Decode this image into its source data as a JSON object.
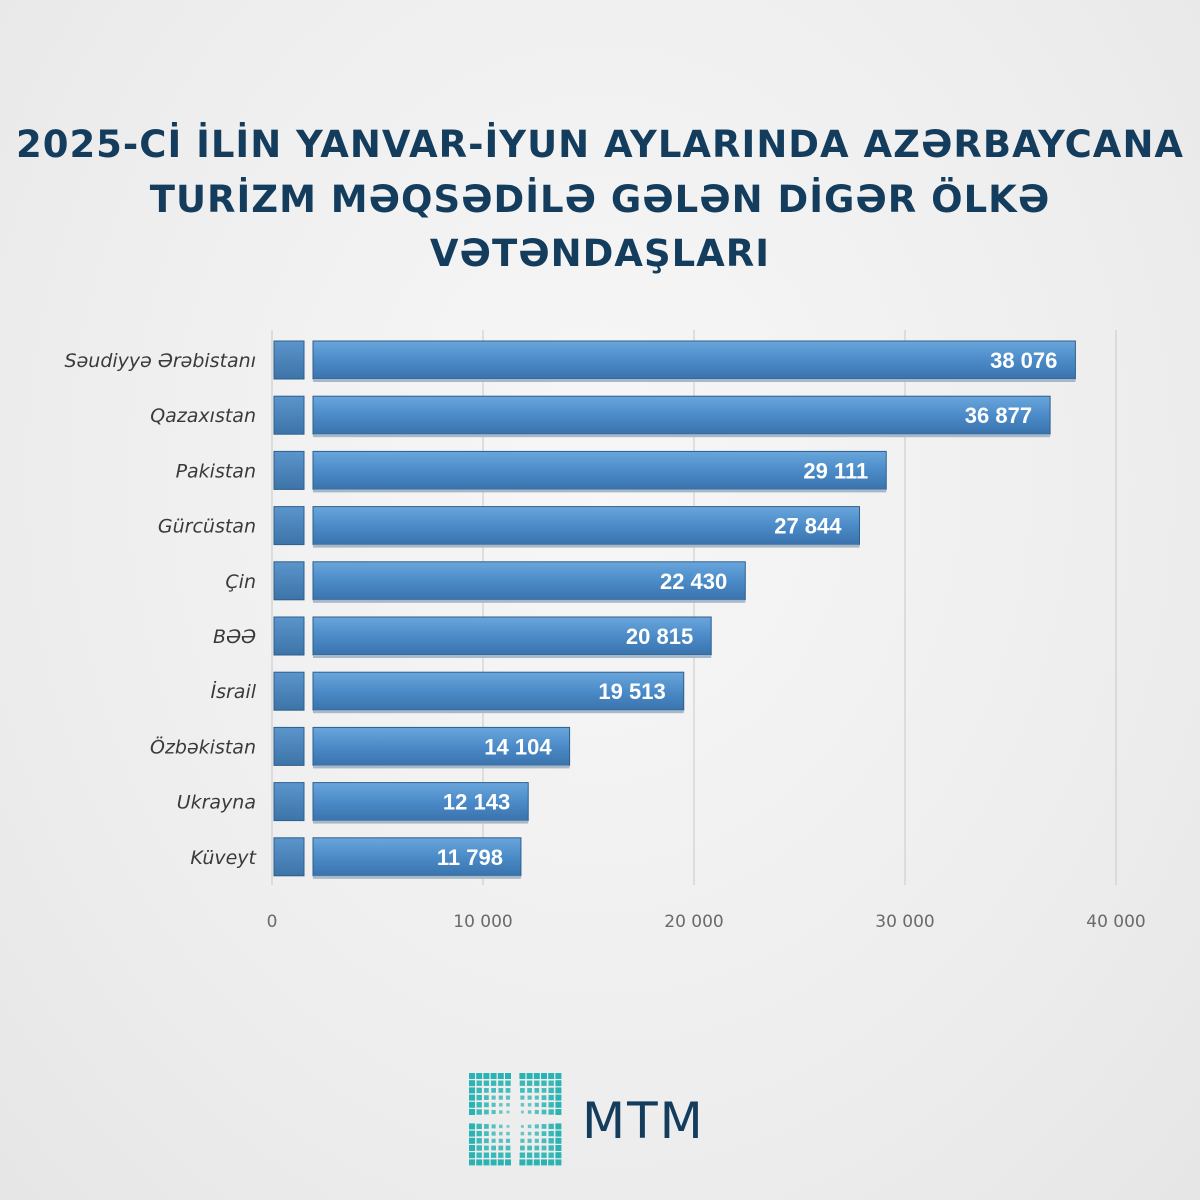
{
  "title_lines": [
    "2025-Cİ İLİN YANVAR-İYUN AYLARINDA AZƏRBAYCANA",
    "TURİZM MƏQSƏDİLƏ GƏLƏN DİGƏR ÖLKƏ VƏTƏNDAŞLARI"
  ],
  "brand": {
    "name": "MTM"
  },
  "colors": {
    "title": "#143c5c",
    "bar": "#4d8fcf",
    "bar_dark": "#3a74ad",
    "logo_teal": "#2ab3b3"
  },
  "chart_data": {
    "type": "bar",
    "orientation": "horizontal",
    "categories": [
      "Səudiyyə Ərəbistanı",
      "Qazaxıstan",
      "Pakistan",
      "Gürcüstan",
      "Çin",
      "BƏƏ",
      "İsrail",
      "Özbəkistan",
      "Ukrayna",
      "Küveyt"
    ],
    "values": [
      38076,
      36877,
      29111,
      27844,
      22430,
      20815,
      19513,
      14104,
      12143,
      11798
    ],
    "value_labels": [
      "38 076",
      "36 877",
      "29 111",
      "27 844",
      "22 430",
      "20 815",
      "19 513",
      "14 104",
      "12 143",
      "11 798"
    ],
    "xlim": [
      0,
      40000
    ],
    "x_ticks": [
      0,
      10000,
      20000,
      30000,
      40000
    ],
    "x_tick_labels": [
      "0",
      "10 000",
      "20 000",
      "30 000",
      "40 000"
    ],
    "grid": true
  }
}
